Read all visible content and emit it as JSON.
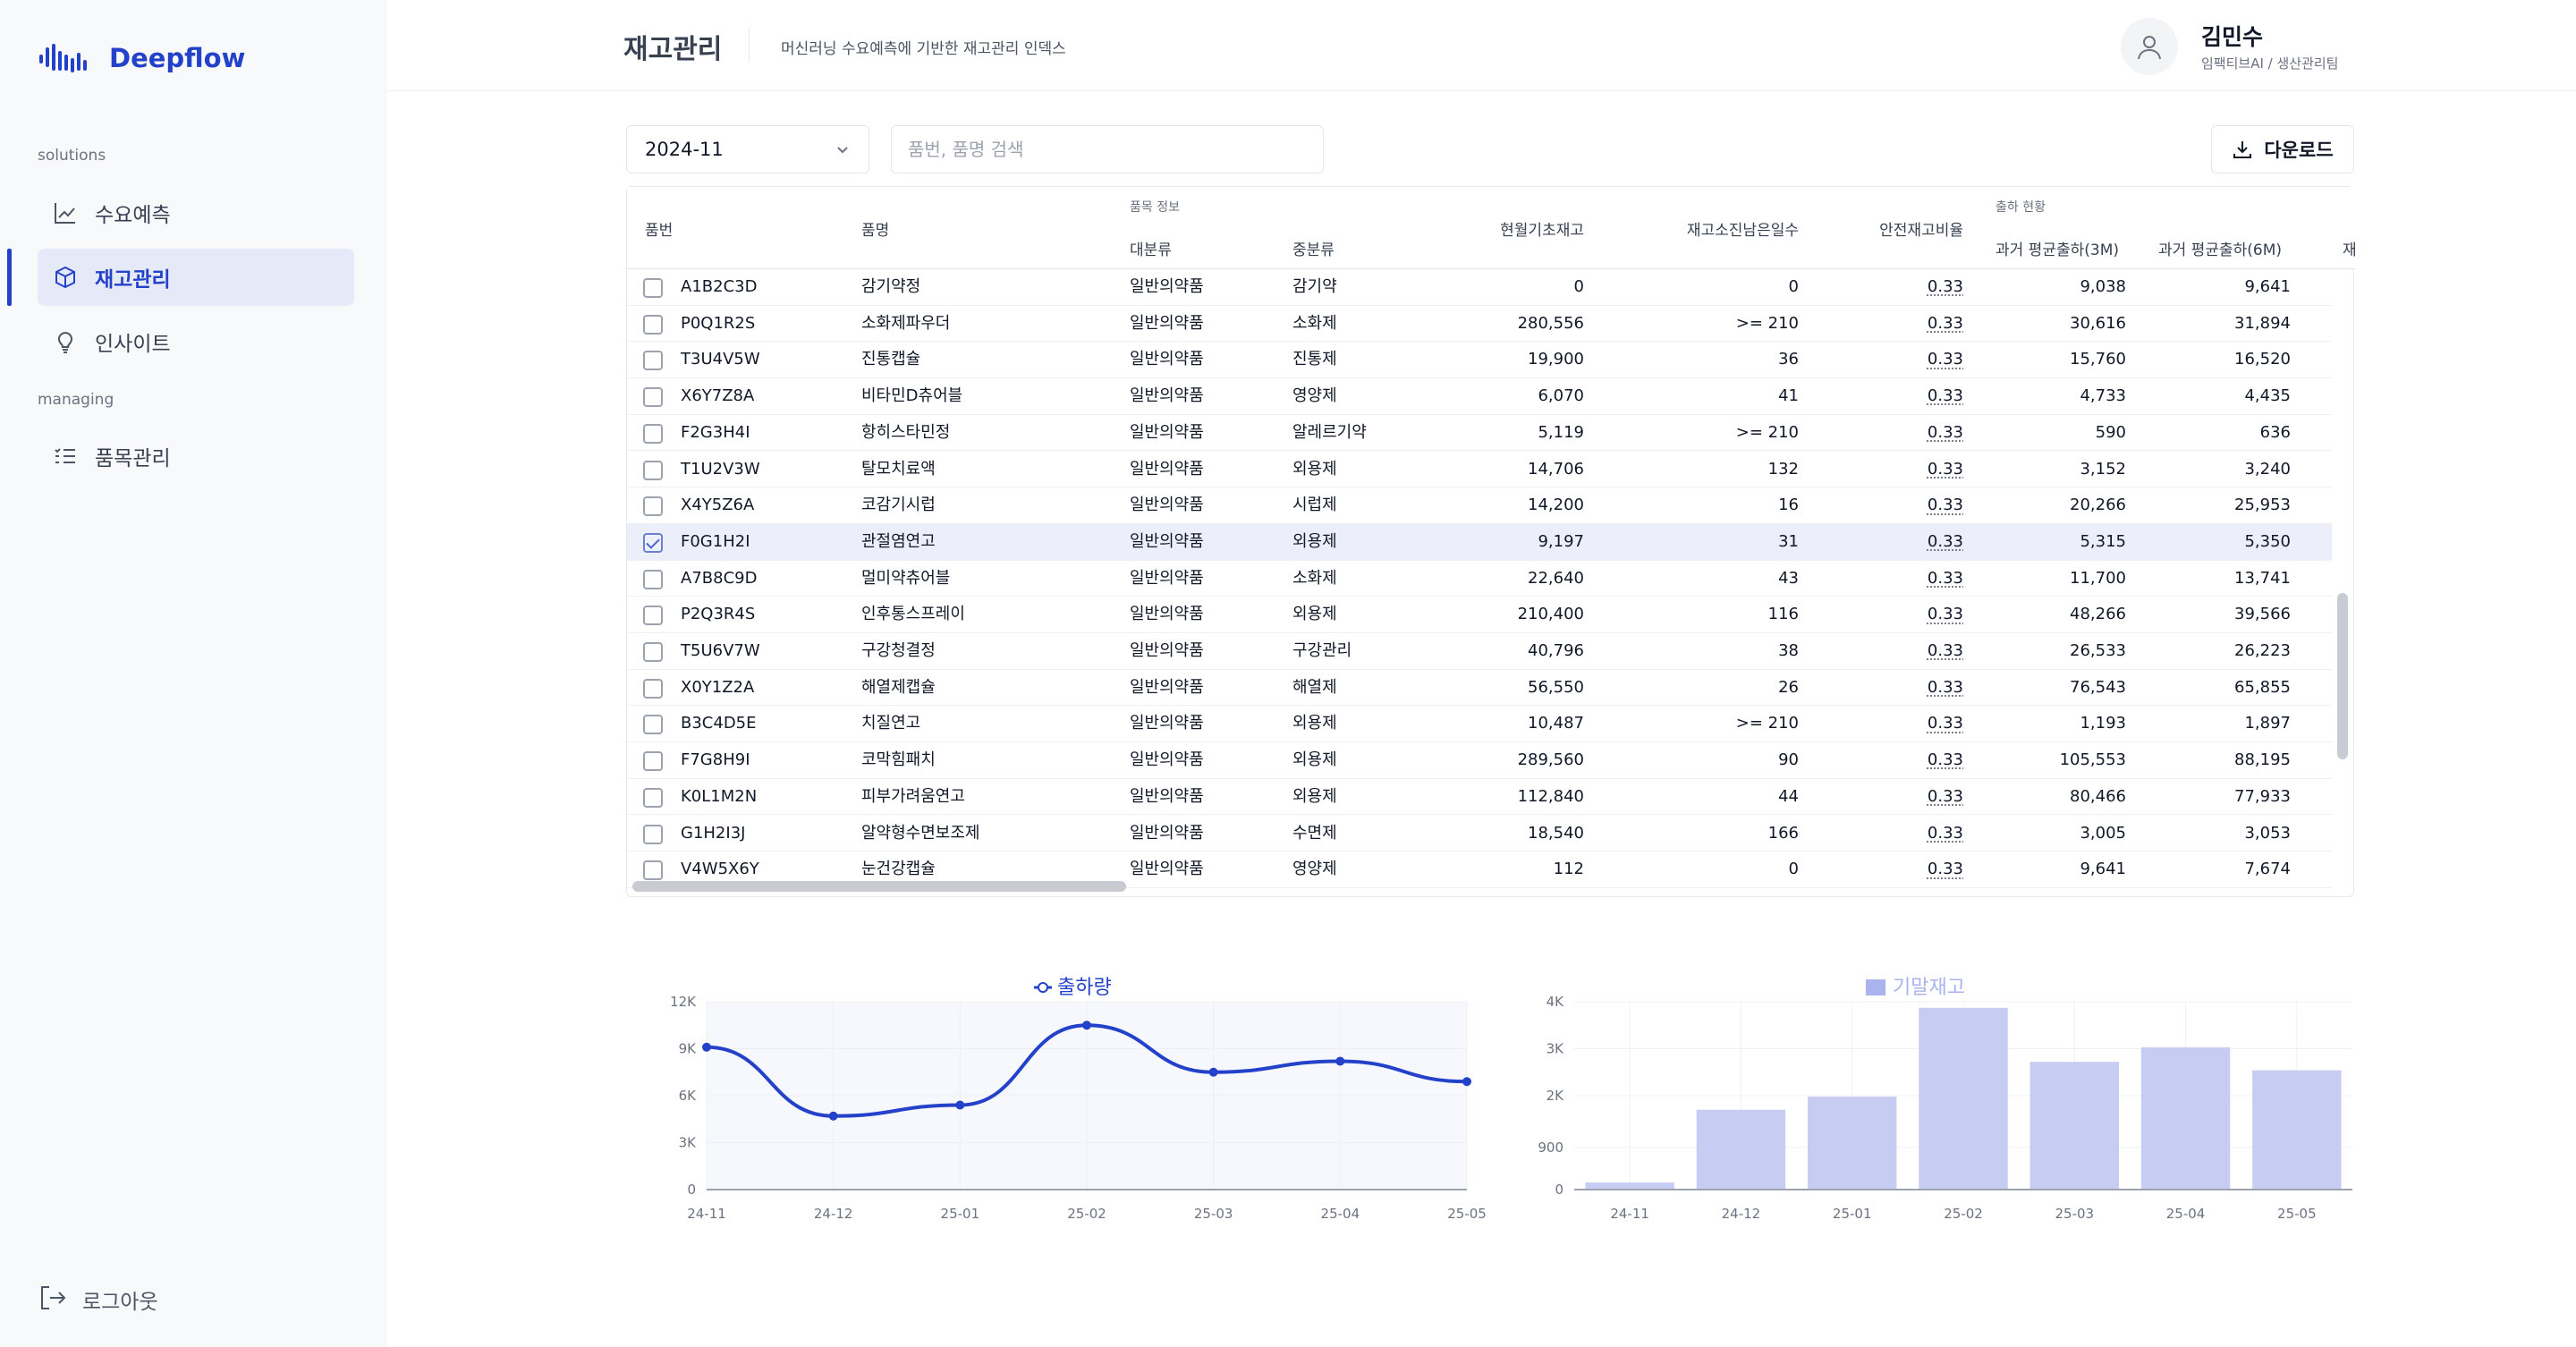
{
  "app": {
    "name": "Deepflow",
    "brand_color": "#2442c9"
  },
  "sidebar": {
    "sections": [
      {
        "label": "solutions",
        "items": [
          {
            "label": "수요예측",
            "icon": "line-chart-icon",
            "active": false
          },
          {
            "label": "재고관리",
            "icon": "box-icon",
            "active": true
          },
          {
            "label": "인사이트",
            "icon": "lightbulb-icon",
            "active": false
          }
        ]
      },
      {
        "label": "managing",
        "items": [
          {
            "label": "품목관리",
            "icon": "list-check-icon",
            "active": false
          }
        ]
      }
    ],
    "logout_label": "로그아웃"
  },
  "header": {
    "title": "재고관리",
    "subtitle": "머신러닝 수요예측에 기반한 재고관리 인덱스",
    "user_name": "김민수",
    "user_role": "임팩티브AI / 생산관리팀"
  },
  "toolbar": {
    "month_value": "2024-11",
    "search_placeholder": "품번, 품명 검색",
    "download_label": "다운로드"
  },
  "table": {
    "group_headers": {
      "item_info": "품목 정보",
      "shipment": "출하 현황"
    },
    "columns": {
      "code": "품번",
      "name": "품명",
      "major": "대분류",
      "minor": "중분류",
      "stock": "현월기초재고",
      "days": "재고소진남은일수",
      "safety": "안전재고비율",
      "avg3m": "과거 평균출하(3M)",
      "avg6m": "과거 평균출하(6M)",
      "next": "재"
    },
    "rows": [
      {
        "code": "A1B2C3D",
        "name": "감기약정",
        "major": "일반의약품",
        "minor": "감기약",
        "stock": "0",
        "days": "0",
        "safety": "0.33",
        "avg3m": "9,038",
        "avg6m": "9,641",
        "checked": false
      },
      {
        "code": "P0Q1R2S",
        "name": "소화제파우더",
        "major": "일반의약품",
        "minor": "소화제",
        "stock": "280,556",
        "days": ">= 210",
        "safety": "0.33",
        "avg3m": "30,616",
        "avg6m": "31,894",
        "checked": false
      },
      {
        "code": "T3U4V5W",
        "name": "진통캡슐",
        "major": "일반의약품",
        "minor": "진통제",
        "stock": "19,900",
        "days": "36",
        "safety": "0.33",
        "avg3m": "15,760",
        "avg6m": "16,520",
        "checked": false
      },
      {
        "code": "X6Y7Z8A",
        "name": "비타민D츄어블",
        "major": "일반의약품",
        "minor": "영양제",
        "stock": "6,070",
        "days": "41",
        "safety": "0.33",
        "avg3m": "4,733",
        "avg6m": "4,435",
        "checked": false
      },
      {
        "code": "F2G3H4I",
        "name": "항히스타민정",
        "major": "일반의약품",
        "minor": "알레르기약",
        "stock": "5,119",
        "days": ">= 210",
        "safety": "0.33",
        "avg3m": "590",
        "avg6m": "636",
        "checked": false
      },
      {
        "code": "T1U2V3W",
        "name": "탈모치료액",
        "major": "일반의약품",
        "minor": "외용제",
        "stock": "14,706",
        "days": "132",
        "safety": "0.33",
        "avg3m": "3,152",
        "avg6m": "3,240",
        "checked": false
      },
      {
        "code": "X4Y5Z6A",
        "name": "코감기시럽",
        "major": "일반의약품",
        "minor": "시럽제",
        "stock": "14,200",
        "days": "16",
        "safety": "0.33",
        "avg3m": "20,266",
        "avg6m": "25,953",
        "checked": false
      },
      {
        "code": "F0G1H2I",
        "name": "관절염연고",
        "major": "일반의약품",
        "minor": "외용제",
        "stock": "9,197",
        "days": "31",
        "safety": "0.33",
        "avg3m": "5,315",
        "avg6m": "5,350",
        "checked": true
      },
      {
        "code": "A7B8C9D",
        "name": "멀미약츄어블",
        "major": "일반의약품",
        "minor": "소화제",
        "stock": "22,640",
        "days": "43",
        "safety": "0.33",
        "avg3m": "11,700",
        "avg6m": "13,741",
        "checked": false
      },
      {
        "code": "P2Q3R4S",
        "name": "인후통스프레이",
        "major": "일반의약품",
        "minor": "외용제",
        "stock": "210,400",
        "days": "116",
        "safety": "0.33",
        "avg3m": "48,266",
        "avg6m": "39,566",
        "checked": false
      },
      {
        "code": "T5U6V7W",
        "name": "구강청결정",
        "major": "일반의약품",
        "minor": "구강관리",
        "stock": "40,796",
        "days": "38",
        "safety": "0.33",
        "avg3m": "26,533",
        "avg6m": "26,223",
        "checked": false
      },
      {
        "code": "X0Y1Z2A",
        "name": "해열제캡슐",
        "major": "일반의약품",
        "minor": "해열제",
        "stock": "56,550",
        "days": "26",
        "safety": "0.33",
        "avg3m": "76,543",
        "avg6m": "65,855",
        "checked": false
      },
      {
        "code": "B3C4D5E",
        "name": "치질연고",
        "major": "일반의약품",
        "minor": "외용제",
        "stock": "10,487",
        "days": ">= 210",
        "safety": "0.33",
        "avg3m": "1,193",
        "avg6m": "1,897",
        "checked": false
      },
      {
        "code": "F7G8H9I",
        "name": "코막힘패치",
        "major": "일반의약품",
        "minor": "외용제",
        "stock": "289,560",
        "days": "90",
        "safety": "0.33",
        "avg3m": "105,553",
        "avg6m": "88,195",
        "checked": false
      },
      {
        "code": "K0L1M2N",
        "name": "피부가려움연고",
        "major": "일반의약품",
        "minor": "외용제",
        "stock": "112,840",
        "days": "44",
        "safety": "0.33",
        "avg3m": "80,466",
        "avg6m": "77,933",
        "checked": false
      },
      {
        "code": "G1H2I3J",
        "name": "알약형수면보조제",
        "major": "일반의약품",
        "minor": "수면제",
        "stock": "18,540",
        "days": "166",
        "safety": "0.33",
        "avg3m": "3,005",
        "avg6m": "3,053",
        "checked": false
      },
      {
        "code": "V4W5X6Y",
        "name": "눈건강캡슐",
        "major": "일반의약품",
        "minor": "영양제",
        "stock": "112",
        "days": "0",
        "safety": "0.33",
        "avg3m": "9,641",
        "avg6m": "7,674",
        "checked": false
      }
    ]
  },
  "chart_data": [
    {
      "type": "line",
      "legend": "출하량",
      "color": "#2442c9",
      "categories": [
        "24-11",
        "24-12",
        "25-01",
        "25-02",
        "25-03",
        "25-04",
        "25-05"
      ],
      "values": [
        9100,
        4700,
        5400,
        10500,
        7500,
        8200,
        6900
      ],
      "ylim": [
        0,
        12000
      ],
      "yticks": [
        0,
        3000,
        6000,
        9000,
        12000
      ],
      "ytick_labels": [
        "0",
        "3K",
        "6K",
        "9K",
        "12K"
      ]
    },
    {
      "type": "bar",
      "legend": "기말재고",
      "color": "#c7ccf3",
      "categories": [
        "24-11",
        "24-12",
        "25-01",
        "25-02",
        "25-03",
        "25-04",
        "25-05"
      ],
      "values": [
        150,
        1700,
        1980,
        3870,
        2720,
        3030,
        2540
      ],
      "ylim": [
        0,
        4000
      ],
      "yticks": [
        0,
        900,
        2000,
        3000,
        4000
      ],
      "ytick_labels": [
        "0",
        "900",
        "2K",
        "3K",
        "4K"
      ]
    }
  ]
}
